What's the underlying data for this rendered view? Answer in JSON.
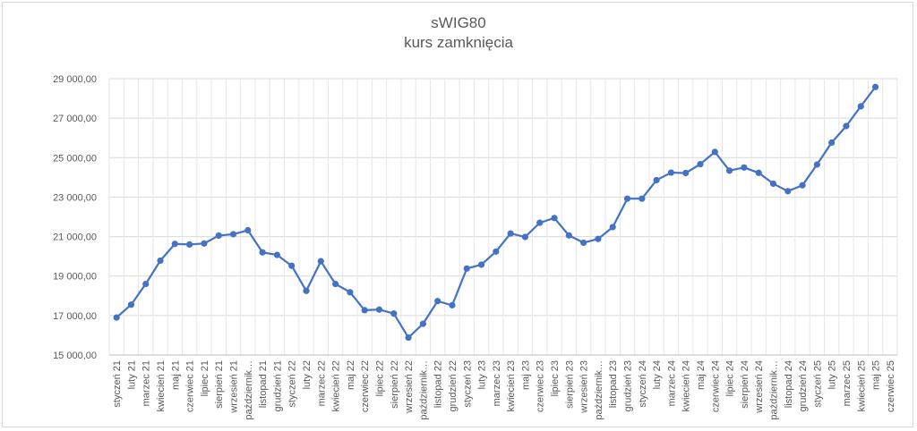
{
  "chart_data": {
    "type": "line",
    "title": "sWIG80",
    "subtitle": "kurs zamknięcia",
    "xlabel": "",
    "ylabel": "",
    "ylim": [
      15000,
      29000
    ],
    "yticks": [
      15000,
      17000,
      19000,
      21000,
      23000,
      25000,
      27000,
      29000
    ],
    "ytick_labels": [
      "15 000,00",
      "17 000,00",
      "19 000,00",
      "21 000,00",
      "23 000,00",
      "25 000,00",
      "27 000,00",
      "29 000,00"
    ],
    "grid": true,
    "legend": "none",
    "line_color": "#4472c4",
    "categories": [
      "styczeń 21",
      "luty 21",
      "marzec 21",
      "kwiecień 21",
      "maj 21",
      "czerwiec 21",
      "lipiec 21",
      "sierpień 21",
      "wrzesień 21",
      "październik…",
      "listopad 21",
      "grudzień 21",
      "styczeń 22",
      "luty 22",
      "marzec 22",
      "kwiecień 22",
      "maj 22",
      "czerwiec 22",
      "lipiec 22",
      "sierpień 22",
      "wrzesień 22",
      "październik…",
      "listopad 22",
      "grudzień 22",
      "styczeń 23",
      "luty 23",
      "marzec 23",
      "kwiecień 23",
      "maj 23",
      "czerwiec 23",
      "lipiec 23",
      "sierpień 23",
      "wrzesień 23",
      "październik…",
      "listopad 23",
      "grudzień 23",
      "styczeń 24",
      "luty 24",
      "marzec 24",
      "kwiecień 24",
      "maj 24",
      "czerwiec 24",
      "lipiec 24",
      "sierpień 24",
      "wrzesień 24",
      "październik…",
      "listopad 24",
      "grudzień 24",
      "styczeń 25",
      "luty 25",
      "marzec 25",
      "kwiecień 25",
      "maj 25",
      "czerwiec 25"
    ],
    "series": [
      {
        "values": [
          16900,
          17550,
          18600,
          19780,
          20630,
          20600,
          20650,
          21050,
          21120,
          21320,
          20200,
          20070,
          19520,
          18250,
          19750,
          18600,
          18180,
          17270,
          17300,
          17100,
          15880,
          16580,
          17730,
          17520,
          19380,
          19580,
          20240,
          21160,
          20980,
          21700,
          21940,
          21060,
          20690,
          20880,
          21480,
          22920,
          22920,
          23860,
          24240,
          24220,
          24670,
          25290,
          24340,
          24500,
          24230,
          23680,
          23300,
          23600,
          24650,
          25760,
          26600,
          27600,
          28580,
          null
        ]
      }
    ]
  }
}
